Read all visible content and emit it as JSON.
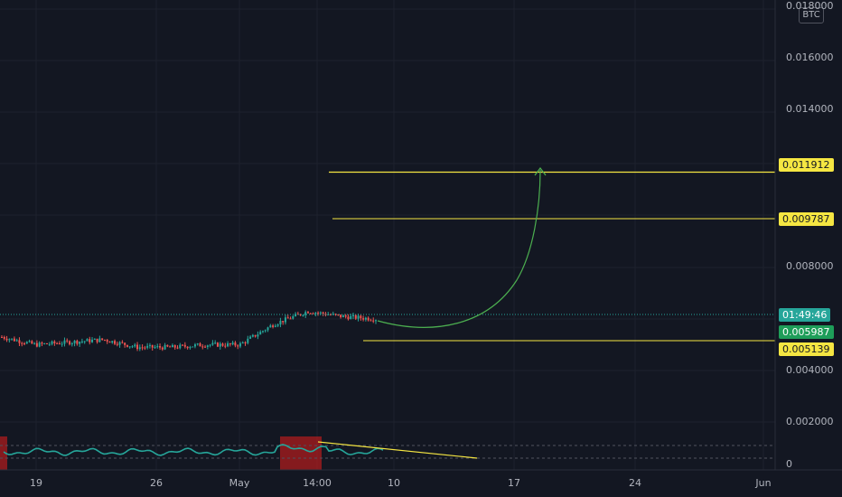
{
  "currency": "BTC",
  "price_axis": {
    "ticks": [
      "0.018000",
      "0.016000",
      "0.014000",
      "0.008000",
      "0.004000",
      "0.002000",
      "0"
    ]
  },
  "date_axis": {
    "ticks": [
      "19",
      "26",
      "May",
      "14:00",
      "10",
      "17",
      "24",
      "Jun"
    ]
  },
  "price_tags": {
    "target_high": "0.011912",
    "target_mid": "0.009787",
    "countdown": "01:49:46",
    "current": "0.005987",
    "support": "0.005139"
  },
  "colors": {
    "background": "#131722",
    "up_candle": "#26a69a",
    "down_candle": "#ef5350",
    "level_line": "#f5e642",
    "arrow": "#4caf50",
    "oscillator": "#26a69a",
    "oscillator_zone": "#b71c1c"
  },
  "chart_data": {
    "type": "candlestick",
    "currency": "BTC",
    "levels": [
      0.011912,
      0.009787,
      0.005139
    ],
    "last_price": 0.005987,
    "approx_close_series": [
      {
        "date": "Apr 16",
        "close": 0.0053
      },
      {
        "date": "Apr 19",
        "close": 0.005
      },
      {
        "date": "Apr 22",
        "close": 0.0051
      },
      {
        "date": "Apr 24",
        "close": 0.0052
      },
      {
        "date": "Apr 26",
        "close": 0.0049
      },
      {
        "date": "Apr 29",
        "close": 0.0049
      },
      {
        "date": "May 2",
        "close": 0.005
      },
      {
        "date": "May 4",
        "close": 0.005
      },
      {
        "date": "May 6",
        "close": 0.0058
      },
      {
        "date": "May 7",
        "close": 0.0063
      },
      {
        "date": "May 8",
        "close": 0.0061
      },
      {
        "date": "May 9",
        "close": 0.006
      }
    ],
    "projection": "curved arrow from current price to 0.011912"
  }
}
